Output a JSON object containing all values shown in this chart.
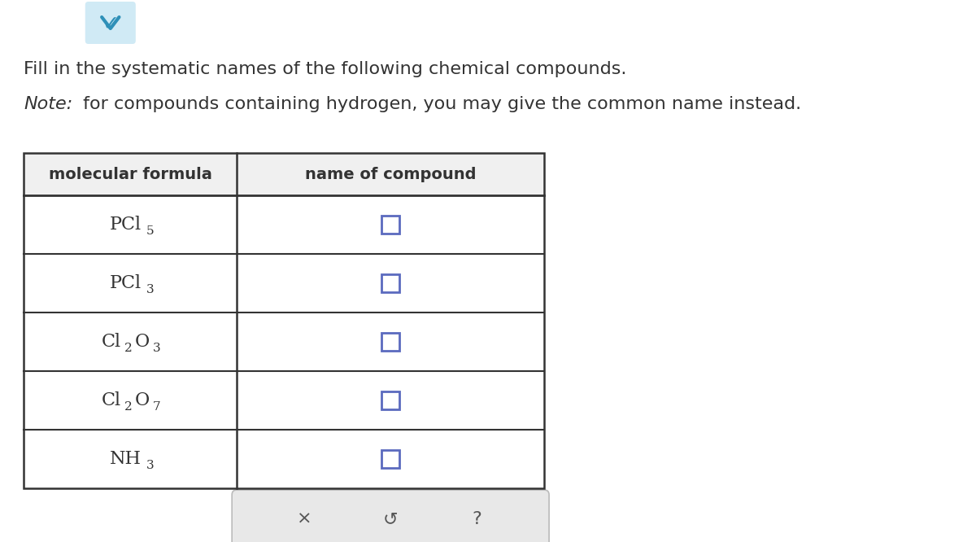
{
  "title_line1": "Fill in the systematic names of the following chemical compounds.",
  "note_italic": "Note:",
  "note_rest": " for compounds containing hydrogen, you may give the common name instead.",
  "col1_header": "molecular formula",
  "col2_header": "name of compound",
  "rows": [
    {
      "label": "PCl5",
      "segments": [
        [
          "PCl",
          false
        ],
        [
          "5",
          true
        ]
      ]
    },
    {
      "label": "PCl3",
      "segments": [
        [
          "PCl",
          false
        ],
        [
          "3",
          true
        ]
      ]
    },
    {
      "label": "Cl2O3",
      "segments": [
        [
          "Cl",
          false
        ],
        [
          "2",
          true
        ],
        [
          "O",
          false
        ],
        [
          "3",
          true
        ]
      ]
    },
    {
      "label": "Cl2O7",
      "segments": [
        [
          "Cl",
          false
        ],
        [
          "2",
          true
        ],
        [
          "O",
          false
        ],
        [
          "7",
          true
        ]
      ]
    },
    {
      "label": "NH3",
      "segments": [
        [
          "NH",
          false
        ],
        [
          "3",
          true
        ]
      ]
    }
  ],
  "bg_color": "#ffffff",
  "border_color": "#333333",
  "text_color": "#333333",
  "header_bg": "#f0f0f0",
  "checkbox_color": "#5b6abf",
  "bottom_panel_color": "#e8e8e8",
  "bottom_panel_border": "#bbbbbb",
  "chevron_bg": "#d0eaf5",
  "chevron_color": "#2e90b8",
  "title_fontsize": 16,
  "note_fontsize": 16,
  "header_fontsize": 14,
  "formula_fontsize": 16,
  "sub_fontsize": 11,
  "btn_fontsize": 15
}
